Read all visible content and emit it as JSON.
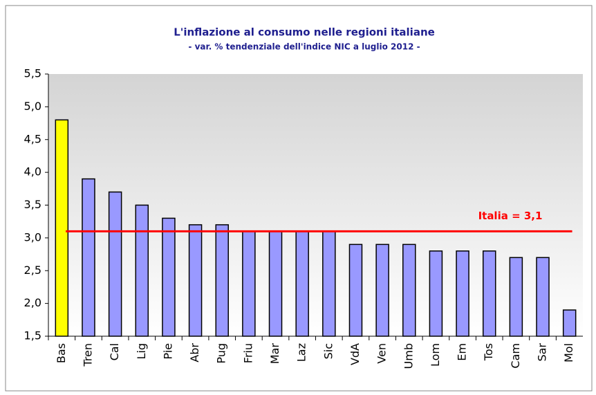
{
  "chart_data": {
    "type": "bar",
    "title": "L'inflazione al consumo nelle regioni italiane",
    "subtitle": "- var. % tendenziale dell'indice NIC a luglio 2012 -",
    "categories": [
      "Bas",
      "Tren",
      "Cal",
      "Lig",
      "Pie",
      "Abr",
      "Pug",
      "Friu",
      "Mar",
      "Laz",
      "Sic",
      "VdA",
      "Ven",
      "Umb",
      "Lom",
      "Em",
      "Tos",
      "Cam",
      "Sar",
      "Mol"
    ],
    "values": [
      4.8,
      3.9,
      3.7,
      3.5,
      3.3,
      3.2,
      3.2,
      3.1,
      3.1,
      3.1,
      3.1,
      2.9,
      2.9,
      2.9,
      2.8,
      2.8,
      2.8,
      2.7,
      2.7,
      1.9
    ],
    "colors": [
      "#ffff00",
      "#9999ff",
      "#9999ff",
      "#9999ff",
      "#9999ff",
      "#9999ff",
      "#9999ff",
      "#9999ff",
      "#9999ff",
      "#9999ff",
      "#9999ff",
      "#9999ff",
      "#9999ff",
      "#9999ff",
      "#9999ff",
      "#9999ff",
      "#9999ff",
      "#9999ff",
      "#9999ff",
      "#9999ff"
    ],
    "ylim": [
      1.5,
      5.5
    ],
    "yticks": [
      {
        "value": 1.5,
        "label": "1,5"
      },
      {
        "value": 2.0,
        "label": "2,0"
      },
      {
        "value": 2.5,
        "label": "2,5"
      },
      {
        "value": 3.0,
        "label": "3,0"
      },
      {
        "value": 3.5,
        "label": "3,5"
      },
      {
        "value": 4.0,
        "label": "4,0"
      },
      {
        "value": 4.5,
        "label": "4,5"
      },
      {
        "value": 5.0,
        "label": "5,0"
      },
      {
        "value": 5.5,
        "label": "5,5"
      }
    ],
    "reference": {
      "value": 3.1,
      "label": "Italia = 3,1",
      "color": "#ff0000"
    }
  }
}
